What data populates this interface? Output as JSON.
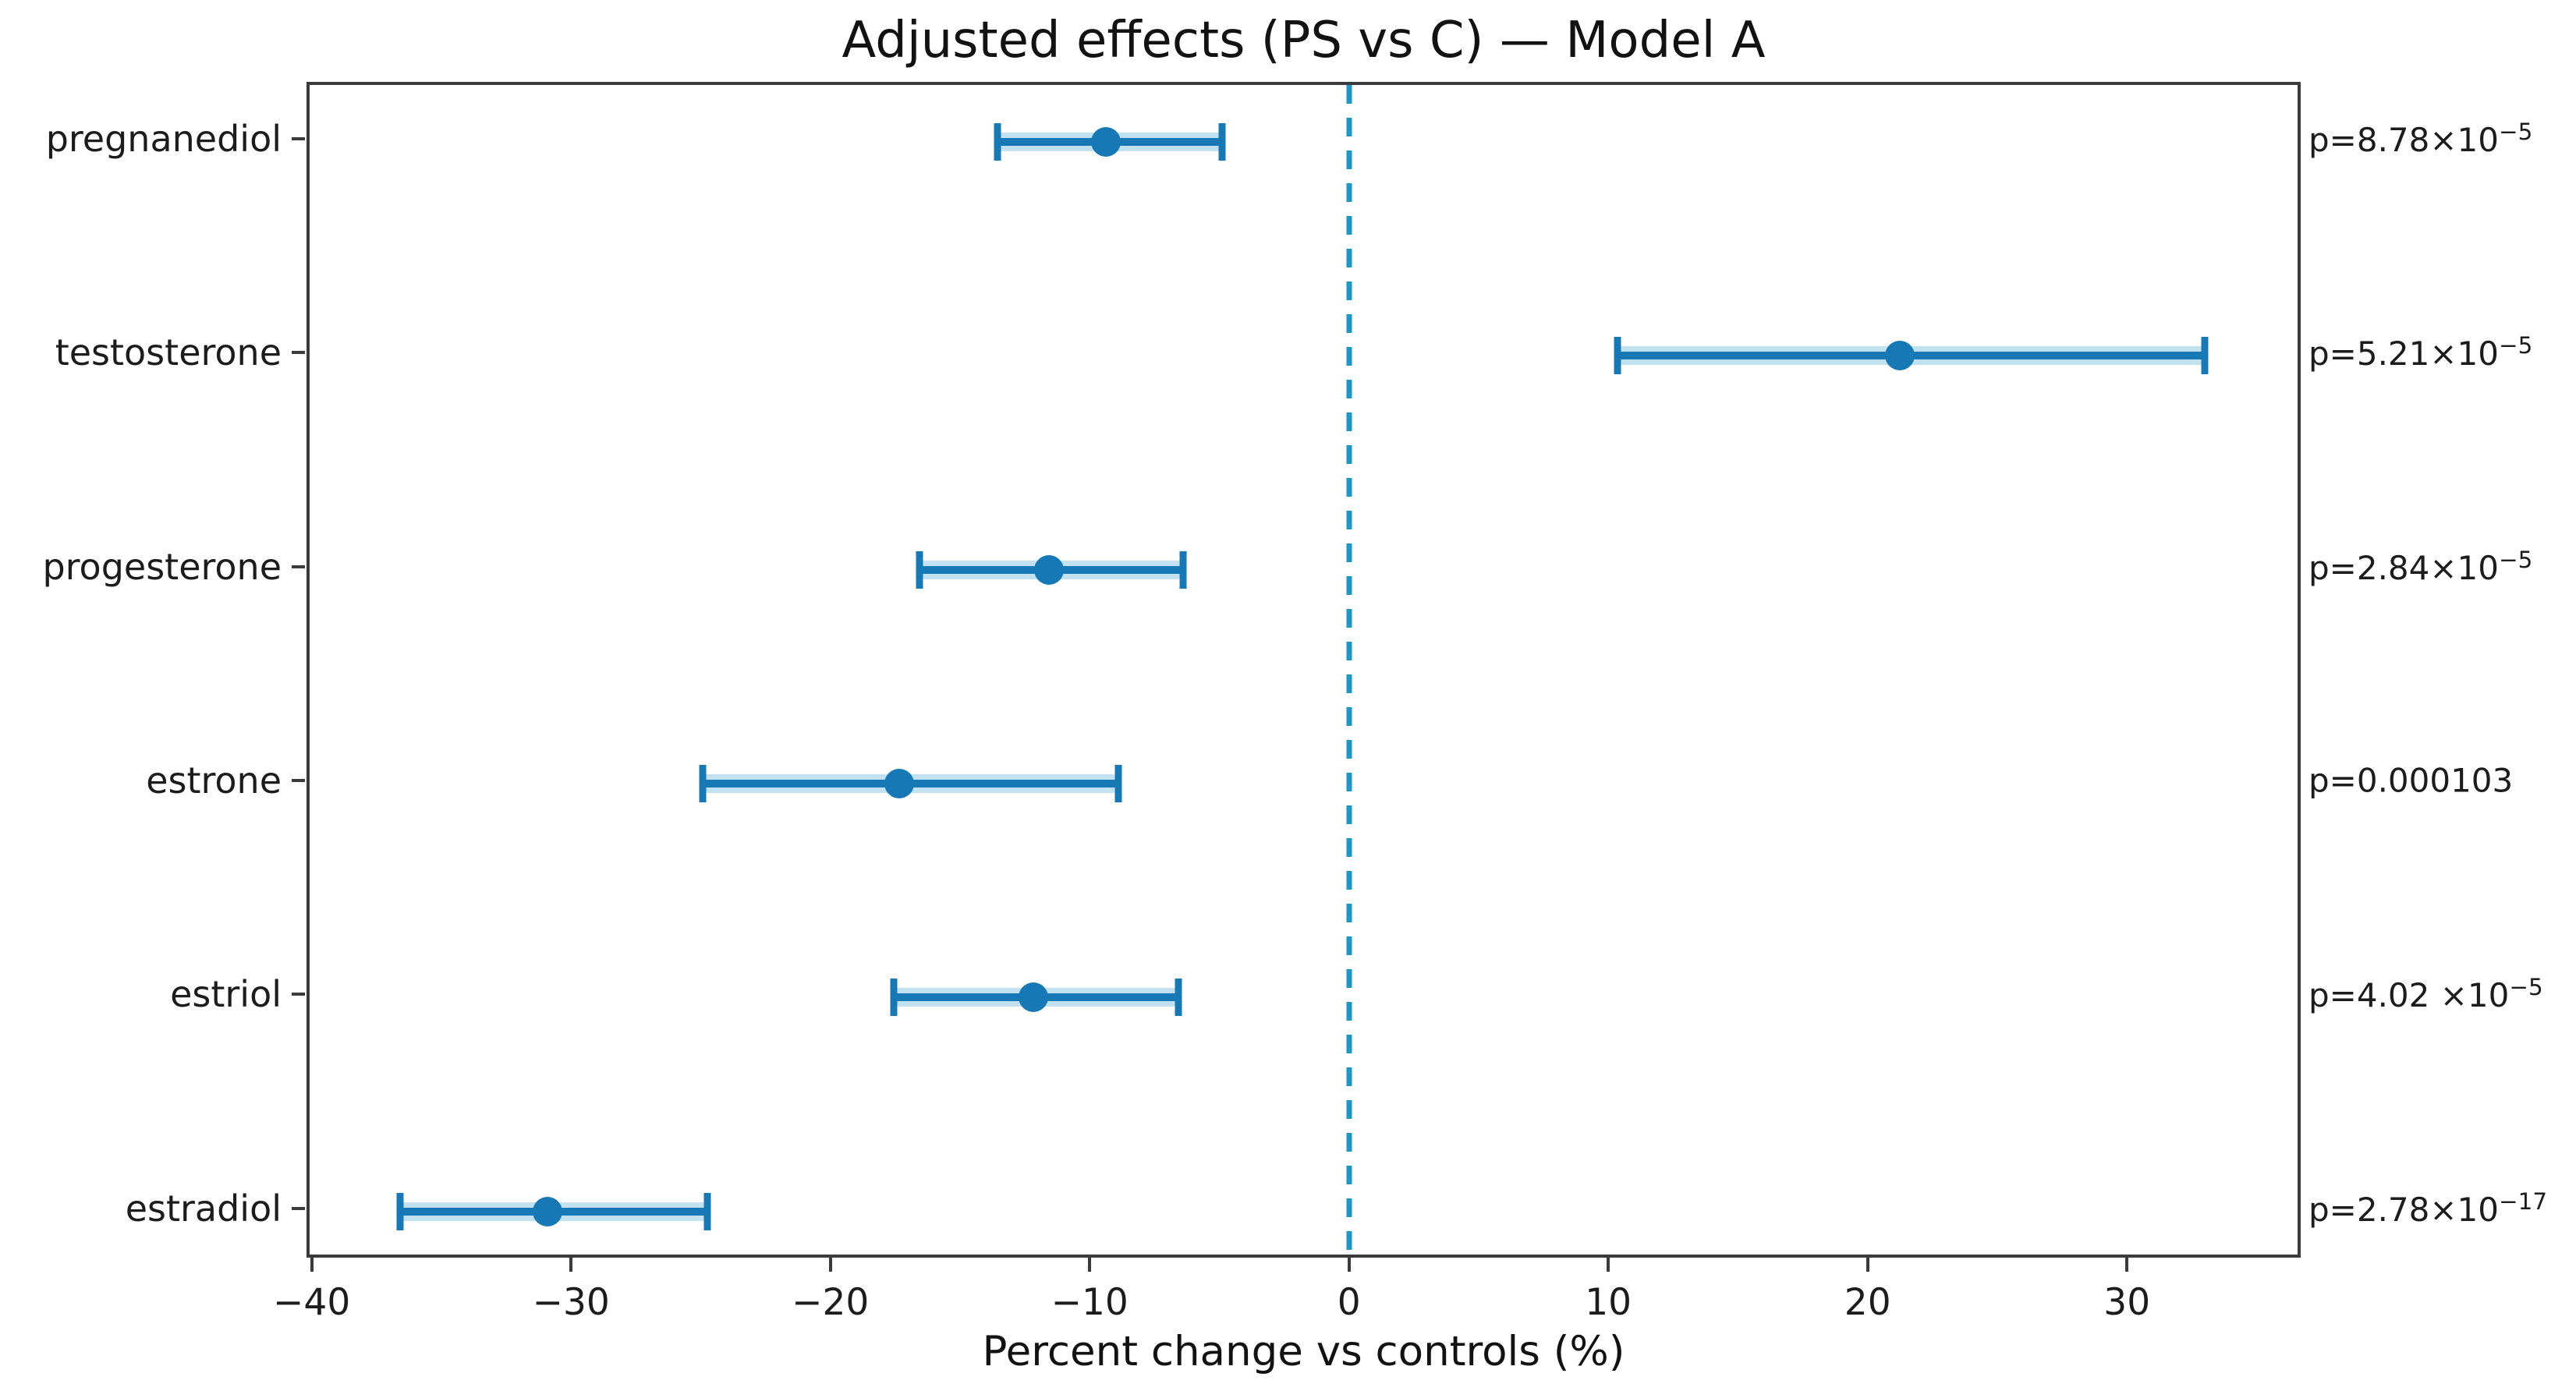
{
  "chart_data": {
    "type": "scatter",
    "subtype": "horizontal-errorbar-forest-plot",
    "title": "Adjusted effects (PS vs C) — Model A",
    "xlabel": "Percent change vs controls (%)",
    "xlim": [
      -40.2,
      36.7
    ],
    "xticks": [
      -40,
      -30,
      -20,
      -10,
      0,
      10,
      20,
      30
    ],
    "xtick_labels": [
      "−40",
      "−30",
      "−20",
      "−10",
      "0",
      "10",
      "20",
      "30"
    ],
    "zero_line_x": 0,
    "grid": false,
    "legend": "none",
    "categories": [
      "pregnanediol",
      "testosterone",
      "progesterone",
      "estrone",
      "estriol",
      "estradiol"
    ],
    "points": [
      {
        "label": "pregnanediol",
        "estimate": -9.4,
        "ci_low": -13.6,
        "ci_high": -4.9,
        "p_base": "8.78",
        "p_exp": "−5"
      },
      {
        "label": "testosterone",
        "estimate": 21.3,
        "ci_low": 10.4,
        "ci_high": 33.1,
        "p_base": "5.21",
        "p_exp": "−5"
      },
      {
        "label": "progesterone",
        "estimate": -11.6,
        "ci_low": -16.6,
        "ci_high": -6.4,
        "p_base": "2.84",
        "p_exp": "−5"
      },
      {
        "label": "estrone",
        "estimate": -17.4,
        "ci_low": -25.0,
        "ci_high": -8.9,
        "p_base": "0.000103",
        "p_exp": null
      },
      {
        "label": "estriol",
        "estimate": -12.2,
        "ci_low": -17.6,
        "ci_high": -6.6,
        "p_base": "4.02 ",
        "p_exp": "−5"
      },
      {
        "label": "estradiol",
        "estimate": -31.0,
        "ci_low": -36.7,
        "ci_high": -24.8,
        "p_base": "2.78",
        "p_exp": "−17"
      }
    ],
    "colors": {
      "marker": "#1778B6",
      "error_line": "#1778B6",
      "error_halo": "#8FCAE7",
      "zero_line": "#1F96C8",
      "text": "#1c1c1c",
      "spine": "#3b3b3b"
    }
  }
}
